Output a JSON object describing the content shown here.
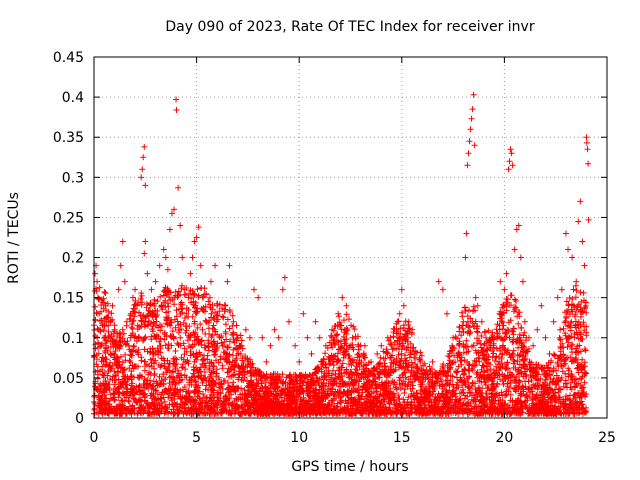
{
  "chart_data": {
    "type": "scatter",
    "title": "Day 090 of 2023, Rate Of TEC Index for receiver invr",
    "xlabel": "GPS time / hours",
    "ylabel": "ROTI / TECUs",
    "xlim": [
      0,
      25
    ],
    "ylim": [
      0,
      0.45
    ],
    "xticks": [
      0,
      5,
      10,
      15,
      20,
      25
    ],
    "xtick_labels": [
      "0",
      "5",
      "10",
      "15",
      "20",
      "25"
    ],
    "yticks": [
      0,
      0.05,
      0.1,
      0.15,
      0.2,
      0.25,
      0.3,
      0.35,
      0.4,
      0.45
    ],
    "ytick_labels": [
      "0",
      "0.05",
      "0.1",
      "0.15",
      "0.2",
      "0.25",
      "0.3",
      "0.35",
      "0.4",
      "0.45"
    ],
    "grid": true,
    "marker": "+",
    "color": "#ff0000",
    "series": [
      {
        "name": "ROTI",
        "points": [
          [
            0.0,
            0.02
          ],
          [
            0.05,
            0.18
          ],
          [
            0.1,
            0.19
          ],
          [
            0.15,
            0.17
          ],
          [
            0.2,
            0.15
          ],
          [
            0.25,
            0.13
          ],
          [
            0.3,
            0.11
          ],
          [
            0.35,
            0.09
          ],
          [
            0.4,
            0.06
          ],
          [
            0.5,
            0.04
          ],
          [
            0.6,
            0.12
          ],
          [
            0.7,
            0.1
          ],
          [
            0.8,
            0.08
          ],
          [
            0.9,
            0.14
          ],
          [
            1.0,
            0.11
          ],
          [
            1.1,
            0.07
          ],
          [
            1.2,
            0.16
          ],
          [
            1.3,
            0.19
          ],
          [
            1.4,
            0.22
          ],
          [
            1.5,
            0.17
          ],
          [
            1.6,
            0.12
          ],
          [
            1.7,
            0.09
          ],
          [
            1.8,
            0.13
          ],
          [
            1.9,
            0.15
          ],
          [
            2.0,
            0.16
          ],
          [
            2.1,
            0.14
          ],
          [
            2.2,
            0.1
          ],
          [
            2.3,
            0.3
          ],
          [
            2.35,
            0.31
          ],
          [
            2.4,
            0.325
          ],
          [
            2.45,
            0.338
          ],
          [
            2.5,
            0.29
          ],
          [
            2.45,
            0.205
          ],
          [
            2.5,
            0.22
          ],
          [
            2.6,
            0.18
          ],
          [
            2.7,
            0.13
          ],
          [
            2.8,
            0.16
          ],
          [
            3.0,
            0.17
          ],
          [
            3.2,
            0.19
          ],
          [
            3.4,
            0.21
          ],
          [
            3.5,
            0.2
          ],
          [
            3.6,
            0.185
          ],
          [
            3.7,
            0.235
          ],
          [
            3.8,
            0.255
          ],
          [
            3.9,
            0.26
          ],
          [
            4.0,
            0.397
          ],
          [
            4.02,
            0.384
          ],
          [
            4.1,
            0.287
          ],
          [
            4.2,
            0.24
          ],
          [
            4.3,
            0.2
          ],
          [
            4.4,
            0.16
          ],
          [
            4.5,
            0.13
          ],
          [
            4.6,
            0.15
          ],
          [
            4.7,
            0.18
          ],
          [
            4.8,
            0.2
          ],
          [
            4.9,
            0.22
          ],
          [
            5.0,
            0.225
          ],
          [
            5.1,
            0.238
          ],
          [
            5.2,
            0.19
          ],
          [
            5.3,
            0.15
          ],
          [
            5.5,
            0.12
          ],
          [
            5.7,
            0.17
          ],
          [
            5.9,
            0.19
          ],
          [
            6.0,
            0.14
          ],
          [
            6.2,
            0.1
          ],
          [
            6.4,
            0.14
          ],
          [
            6.5,
            0.17
          ],
          [
            6.6,
            0.19
          ],
          [
            6.8,
            0.12
          ],
          [
            7.0,
            0.1
          ],
          [
            7.2,
            0.09
          ],
          [
            7.4,
            0.11
          ],
          [
            7.6,
            0.1
          ],
          [
            7.8,
            0.16
          ],
          [
            8.0,
            0.15
          ],
          [
            8.2,
            0.1
          ],
          [
            8.4,
            0.07
          ],
          [
            8.6,
            0.09
          ],
          [
            8.8,
            0.11
          ],
          [
            9.0,
            0.1
          ],
          [
            9.2,
            0.16
          ],
          [
            9.3,
            0.175
          ],
          [
            9.5,
            0.12
          ],
          [
            9.8,
            0.09
          ],
          [
            10.0,
            0.07
          ],
          [
            10.2,
            0.13
          ],
          [
            10.4,
            0.1
          ],
          [
            10.6,
            0.08
          ],
          [
            10.8,
            0.12
          ],
          [
            11.0,
            0.1
          ],
          [
            11.3,
            0.09
          ],
          [
            11.6,
            0.11
          ],
          [
            11.9,
            0.13
          ],
          [
            12.1,
            0.15
          ],
          [
            12.3,
            0.14
          ],
          [
            12.6,
            0.1
          ],
          [
            12.9,
            0.08
          ],
          [
            13.2,
            0.09
          ],
          [
            13.5,
            0.07
          ],
          [
            13.8,
            0.08
          ],
          [
            14.0,
            0.09
          ],
          [
            14.3,
            0.08
          ],
          [
            14.6,
            0.07
          ],
          [
            14.8,
            0.12
          ],
          [
            14.9,
            0.13
          ],
          [
            15.0,
            0.16
          ],
          [
            15.1,
            0.14
          ],
          [
            15.3,
            0.1
          ],
          [
            15.6,
            0.08
          ],
          [
            15.9,
            0.07
          ],
          [
            16.2,
            0.06
          ],
          [
            16.5,
            0.07
          ],
          [
            16.8,
            0.17
          ],
          [
            17.0,
            0.16
          ],
          [
            17.2,
            0.13
          ],
          [
            17.5,
            0.1
          ],
          [
            17.8,
            0.09
          ],
          [
            18.0,
            0.12
          ],
          [
            18.1,
            0.2
          ],
          [
            18.15,
            0.23
          ],
          [
            18.2,
            0.315
          ],
          [
            18.25,
            0.33
          ],
          [
            18.3,
            0.345
          ],
          [
            18.35,
            0.36
          ],
          [
            18.4,
            0.373
          ],
          [
            18.45,
            0.385
          ],
          [
            18.5,
            0.403
          ],
          [
            18.55,
            0.34
          ],
          [
            18.6,
            0.15
          ],
          [
            18.7,
            0.14
          ],
          [
            18.9,
            0.12
          ],
          [
            19.1,
            0.1
          ],
          [
            19.3,
            0.09
          ],
          [
            19.5,
            0.1
          ],
          [
            19.8,
            0.17
          ],
          [
            20.0,
            0.16
          ],
          [
            20.1,
            0.18
          ],
          [
            20.2,
            0.31
          ],
          [
            20.25,
            0.32
          ],
          [
            20.3,
            0.335
          ],
          [
            20.35,
            0.33
          ],
          [
            20.4,
            0.315
          ],
          [
            20.5,
            0.21
          ],
          [
            20.6,
            0.235
          ],
          [
            20.7,
            0.24
          ],
          [
            20.8,
            0.2
          ],
          [
            20.9,
            0.17
          ],
          [
            21.0,
            0.12
          ],
          [
            21.2,
            0.1
          ],
          [
            21.4,
            0.09
          ],
          [
            21.6,
            0.11
          ],
          [
            21.8,
            0.14
          ],
          [
            22.0,
            0.1
          ],
          [
            22.2,
            0.08
          ],
          [
            22.4,
            0.12
          ],
          [
            22.6,
            0.15
          ],
          [
            22.8,
            0.16
          ],
          [
            23.0,
            0.23
          ],
          [
            23.1,
            0.21
          ],
          [
            23.3,
            0.2
          ],
          [
            23.5,
            0.17
          ],
          [
            23.6,
            0.245
          ],
          [
            23.7,
            0.27
          ],
          [
            23.8,
            0.22
          ],
          [
            23.9,
            0.19
          ],
          [
            24.0,
            0.35
          ],
          [
            24.02,
            0.343
          ],
          [
            24.05,
            0.335
          ],
          [
            24.08,
            0.317
          ],
          [
            24.1,
            0.247
          ]
        ]
      }
    ]
  }
}
